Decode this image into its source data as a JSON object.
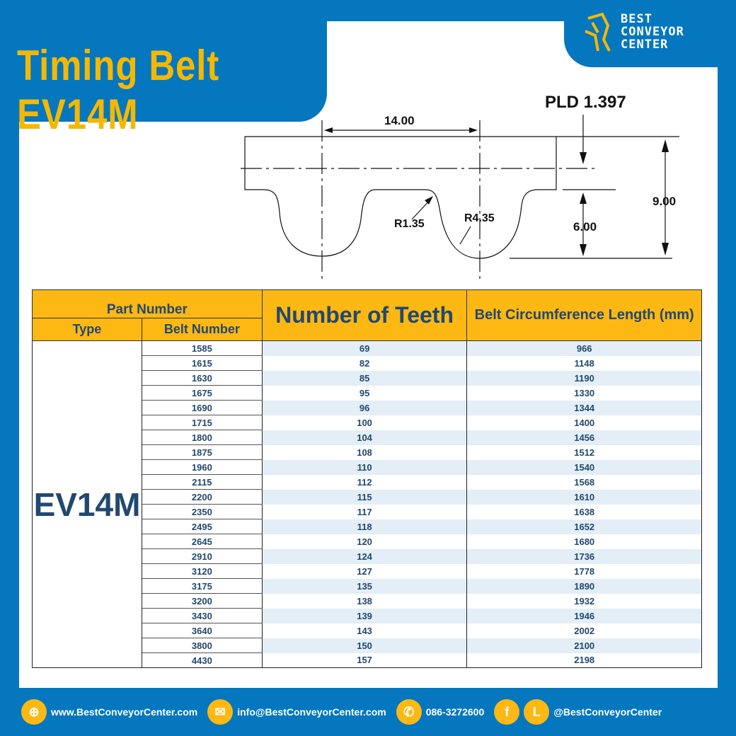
{
  "title": "Timing Belt EV14M",
  "logo": {
    "line1": "BEST",
    "line2": "CONVEYOR",
    "line3": "CENTER"
  },
  "diagram": {
    "pitch": "14.00",
    "pld": "PLD 1.397",
    "height": "9.00",
    "tooth_height": "6.00",
    "r1": "R1.35",
    "r2": "R4.35"
  },
  "table": {
    "header_part_number": "Part Number",
    "header_type": "Type",
    "header_belt_number": "Belt Number",
    "header_teeth": "Number of Teeth",
    "header_length": "Belt Circumference Length (mm)",
    "type": "EV14M",
    "rows": [
      [
        "1585",
        "69",
        "966"
      ],
      [
        "1615",
        "82",
        "1148"
      ],
      [
        "1630",
        "85",
        "1190"
      ],
      [
        "1675",
        "95",
        "1330"
      ],
      [
        "1690",
        "96",
        "1344"
      ],
      [
        "1715",
        "100",
        "1400"
      ],
      [
        "1800",
        "104",
        "1456"
      ],
      [
        "1875",
        "108",
        "1512"
      ],
      [
        "1960",
        "110",
        "1540"
      ],
      [
        "2115",
        "112",
        "1568"
      ],
      [
        "2200",
        "115",
        "1610"
      ],
      [
        "2350",
        "117",
        "1638"
      ],
      [
        "2495",
        "118",
        "1652"
      ],
      [
        "2645",
        "120",
        "1680"
      ],
      [
        "2910",
        "124",
        "1736"
      ],
      [
        "3120",
        "127",
        "1778"
      ],
      [
        "3175",
        "135",
        "1890"
      ],
      [
        "3200",
        "138",
        "1932"
      ],
      [
        "3430",
        "139",
        "1946"
      ],
      [
        "3640",
        "143",
        "2002"
      ],
      [
        "3800",
        "150",
        "2100"
      ],
      [
        "4430",
        "157",
        "2198"
      ]
    ]
  },
  "footer": {
    "website": "www.BestConveyorCenter.com",
    "email": "info@BestConveyorCenter.com",
    "phone": "086-3272600",
    "social": "@BestConveyorCenter",
    "line_letter": "L",
    "fb_letter": "f"
  },
  "colors": {
    "blue": "#0577bf",
    "yellow": "#fdb813",
    "text": "#22486f"
  }
}
